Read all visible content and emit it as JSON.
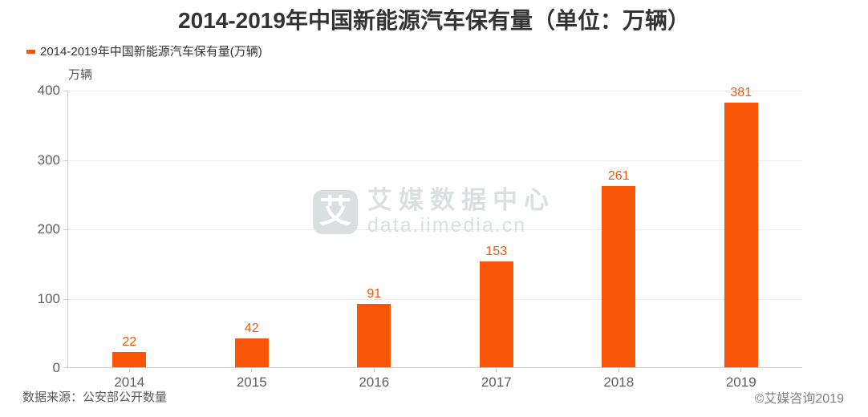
{
  "title": "2014-2019年中国新能源汽车保有量（单位：万辆）",
  "legend": {
    "label": "2014-2019年中国新能源汽车保有量(万辆)"
  },
  "y_axis_name": "万辆",
  "watermark": {
    "logo_char": "艾",
    "name": "艾媒数据中心",
    "url": "data.iimedia.cn"
  },
  "footer": {
    "source": "数据来源：公安部公开数量",
    "copyright": "©艾媒咨询2019"
  },
  "colors": {
    "bar": "#fa560a",
    "value_label": "#fa560a",
    "grid": "#ebebeb",
    "axis_line": "#cccccc",
    "watermark": "#d9e0df"
  },
  "chart_data": {
    "type": "bar",
    "title": "2014-2019年中国新能源汽车保有量（单位：万辆）",
    "series_name": "2014-2019年中国新能源汽车保有量(万辆)",
    "categories": [
      "2014",
      "2015",
      "2016",
      "2017",
      "2018",
      "2019"
    ],
    "values": [
      22,
      42,
      91,
      153,
      261,
      381
    ],
    "xlabel": "",
    "ylabel": "万辆",
    "ylim": [
      0,
      400
    ],
    "yticks": [
      0,
      100,
      200,
      300,
      400
    ],
    "grid": true,
    "legend_position": "top-left",
    "data_labels": true
  }
}
